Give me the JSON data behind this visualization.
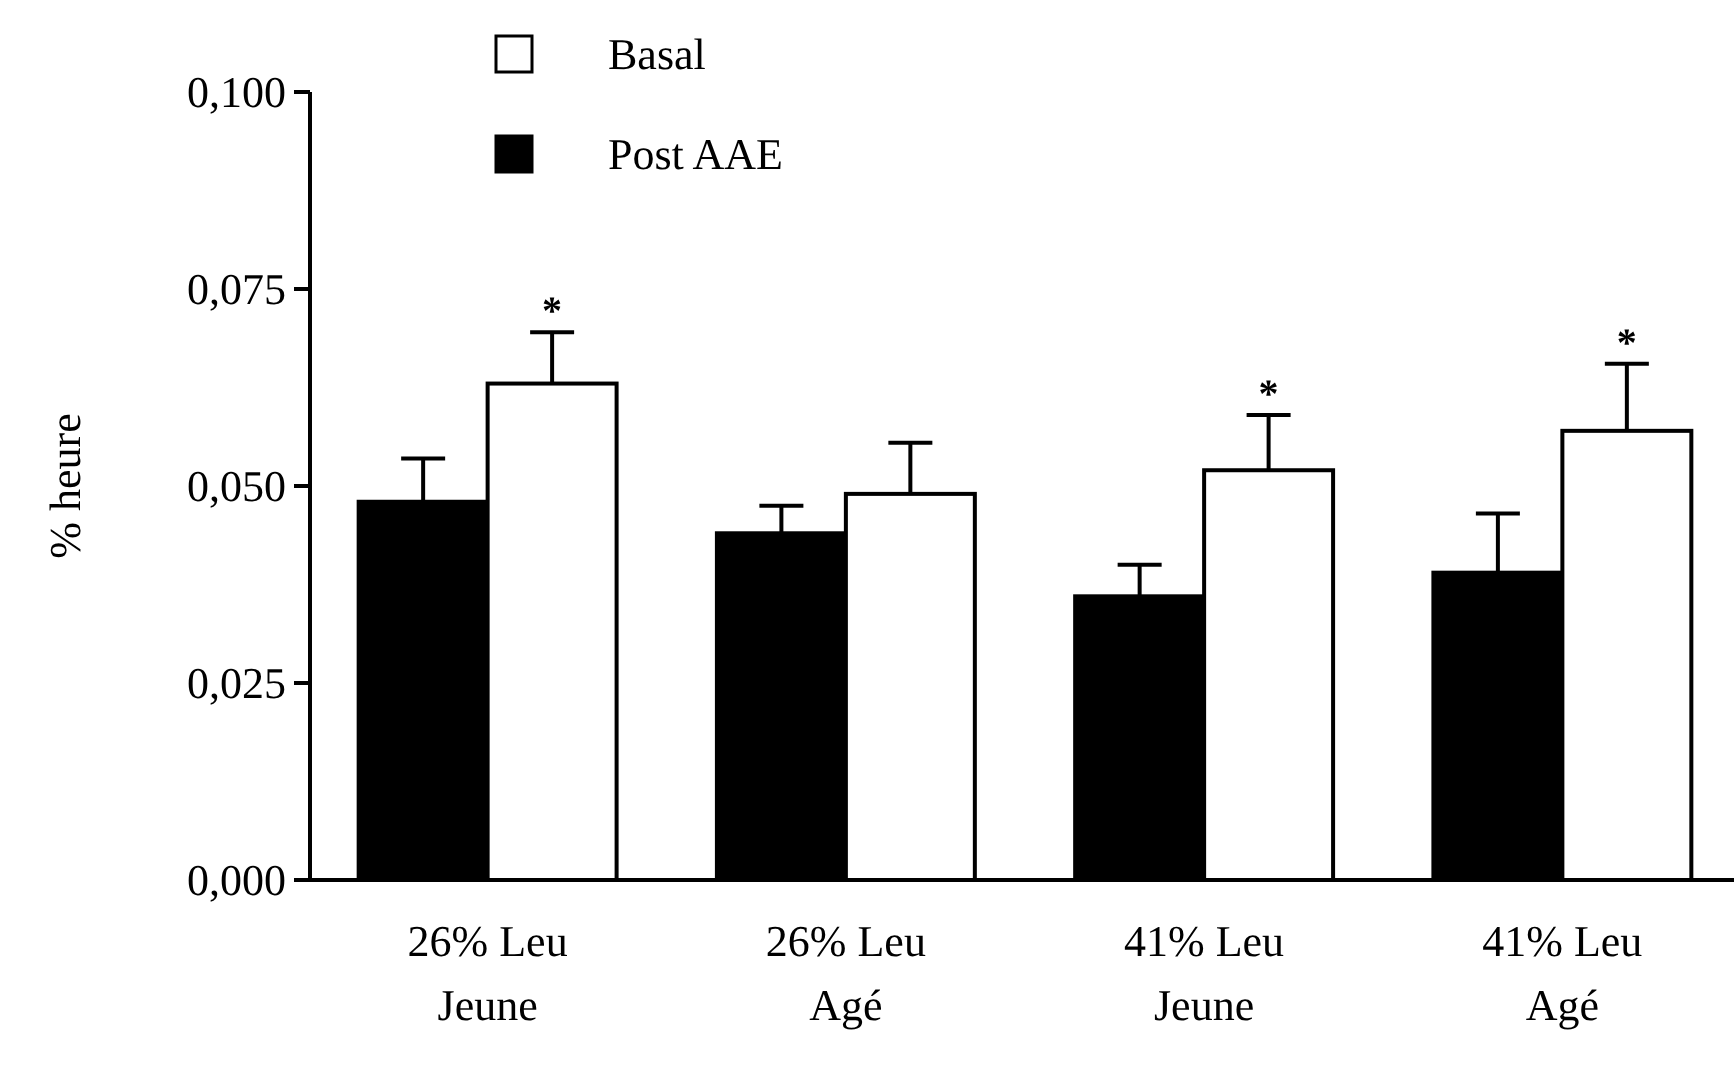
{
  "chart_data": {
    "type": "bar",
    "ylabel": "% heure",
    "categories": [
      "26% Leu Jeune",
      "26% Leu Agé",
      "41% Leu Jeune",
      "41% Leu Agé"
    ],
    "series": [
      {
        "name": "Post AAE",
        "color": "#000000",
        "values": [
          0.048,
          0.044,
          0.036,
          0.039
        ],
        "errors": [
          [
            0.048,
            0.0535
          ],
          [
            0.044,
            0.0475
          ],
          [
            0.036,
            0.04
          ],
          [
            0.039,
            0.0465
          ]
        ]
      },
      {
        "name": "Basal",
        "color": "#ffffff",
        "values": [
          0.063,
          0.049,
          0.052,
          0.057
        ],
        "errors": [
          [
            0.063,
            0.0695
          ],
          [
            0.049,
            0.0555
          ],
          [
            0.052,
            0.059
          ],
          [
            0.057,
            0.0655
          ]
        ]
      }
    ],
    "ylim": [
      0,
      0.1
    ],
    "yticks": [
      {
        "value": 0,
        "label": "0,000"
      },
      {
        "value": 0.025,
        "label": "0,025"
      },
      {
        "value": 0.05,
        "label": "0,050"
      },
      {
        "value": 0.075,
        "label": "0,075"
      },
      {
        "value": 0.1,
        "label": "0,100"
      }
    ],
    "legend": "top left",
    "annotations": [
      {
        "text": "*",
        "x": "26% Leu Jeune",
        "y": 0.063
      },
      {
        "text": "*",
        "x": "41% Leu Jeune",
        "y": 0.052
      },
      {
        "text": "*",
        "x": "41% Leu Agé",
        "y": 0.057
      }
    ]
  }
}
